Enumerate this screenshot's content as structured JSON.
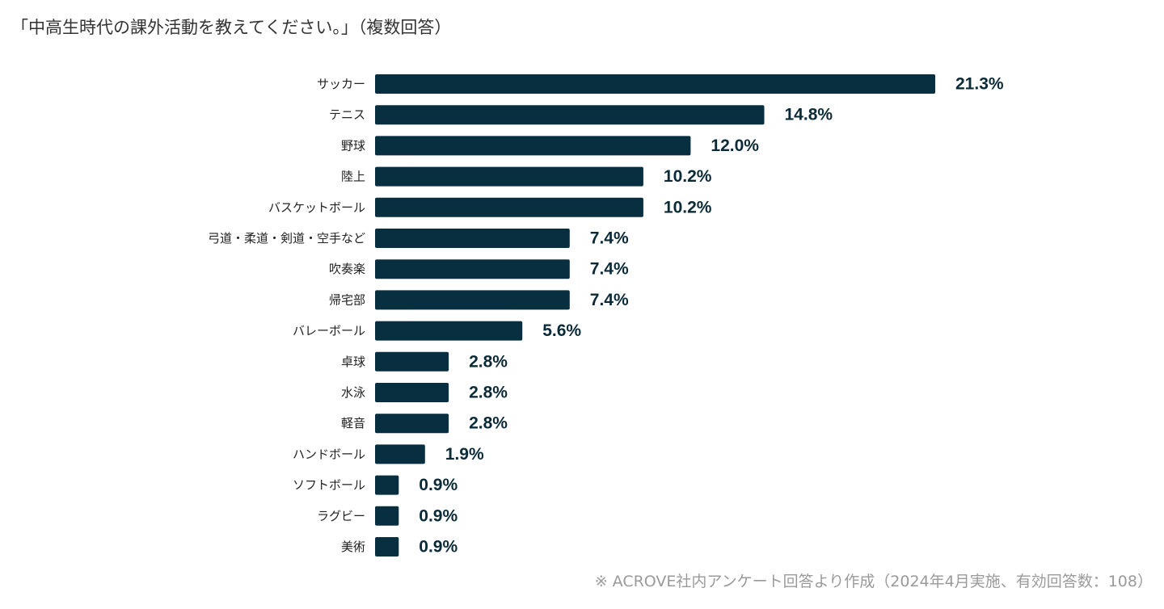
{
  "colors": {
    "bar": "#082f3f",
    "value_text": "#0b2a38",
    "note": "#9a9a9a"
  },
  "chart_data": {
    "type": "bar",
    "orientation": "horizontal",
    "title": "「中高生時代の課外活動を教えてください。」（複数回答）",
    "unit": "%",
    "categories": [
      "サッカー",
      "テニス",
      "野球",
      "陸上",
      "バスケットボール",
      "弓道・柔道・剣道・空手など",
      "吹奏楽",
      "帰宅部",
      "バレーボール",
      "卓球",
      "水泳",
      "軽音",
      "ハンドボール",
      "ソフトボール",
      "ラグビー",
      "美術"
    ],
    "values": [
      21.3,
      14.8,
      12.0,
      10.2,
      10.2,
      7.4,
      7.4,
      7.4,
      5.6,
      2.8,
      2.8,
      2.8,
      1.9,
      0.9,
      0.9,
      0.9
    ],
    "value_labels": [
      "21.3%",
      "14.8%",
      "12.0%",
      "10.2%",
      "10.2%",
      "7.4%",
      "7.4%",
      "7.4%",
      "5.6%",
      "2.8%",
      "2.8%",
      "2.8%",
      "1.9%",
      "0.9%",
      "0.9%",
      "0.9%"
    ],
    "xlim": [
      0,
      21.3
    ],
    "grid": false,
    "legend": "none"
  },
  "source_note": "※ ACROVE社内アンケート回答より作成（2024年4月実施、有効回答数：108）"
}
